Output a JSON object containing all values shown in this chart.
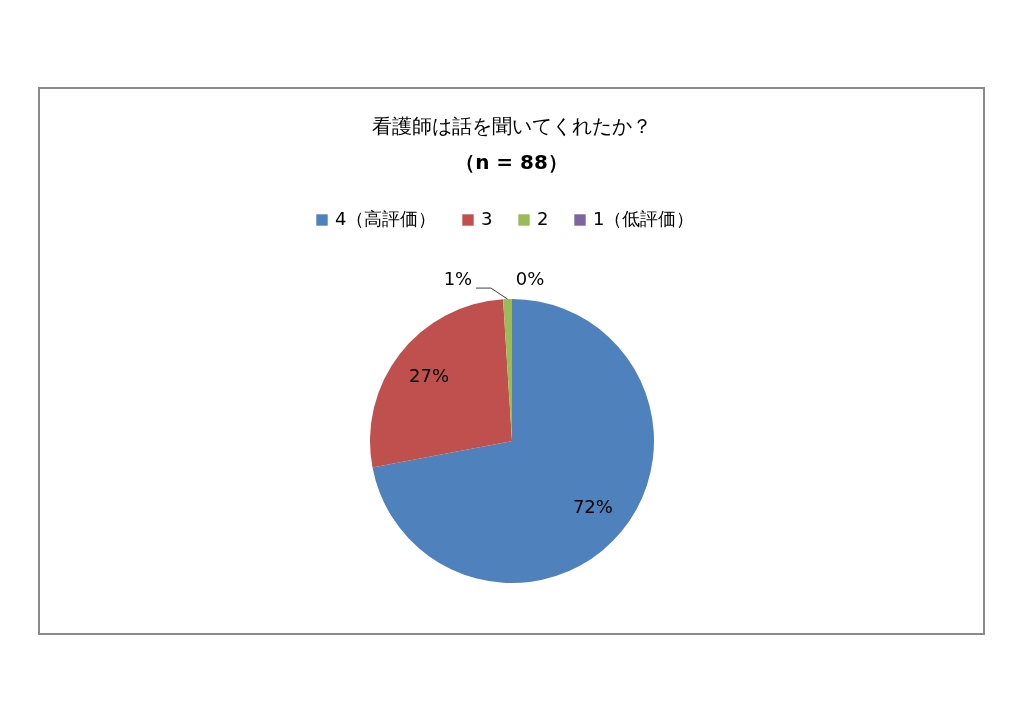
{
  "chart_data": {
    "type": "pie",
    "title": "看護師は話を聞いてくれたか？",
    "subtitle": "（n = 88）",
    "categories": [
      "4（高評価）",
      "3",
      "2",
      "1（低評価）"
    ],
    "values": [
      72,
      27,
      1,
      0
    ],
    "colors": [
      "#4f81bd",
      "#c0504d",
      "#9bbb59",
      "#8064a2"
    ],
    "value_labels": [
      "72%",
      "27%",
      "1%",
      "0%"
    ],
    "legend": "top"
  }
}
